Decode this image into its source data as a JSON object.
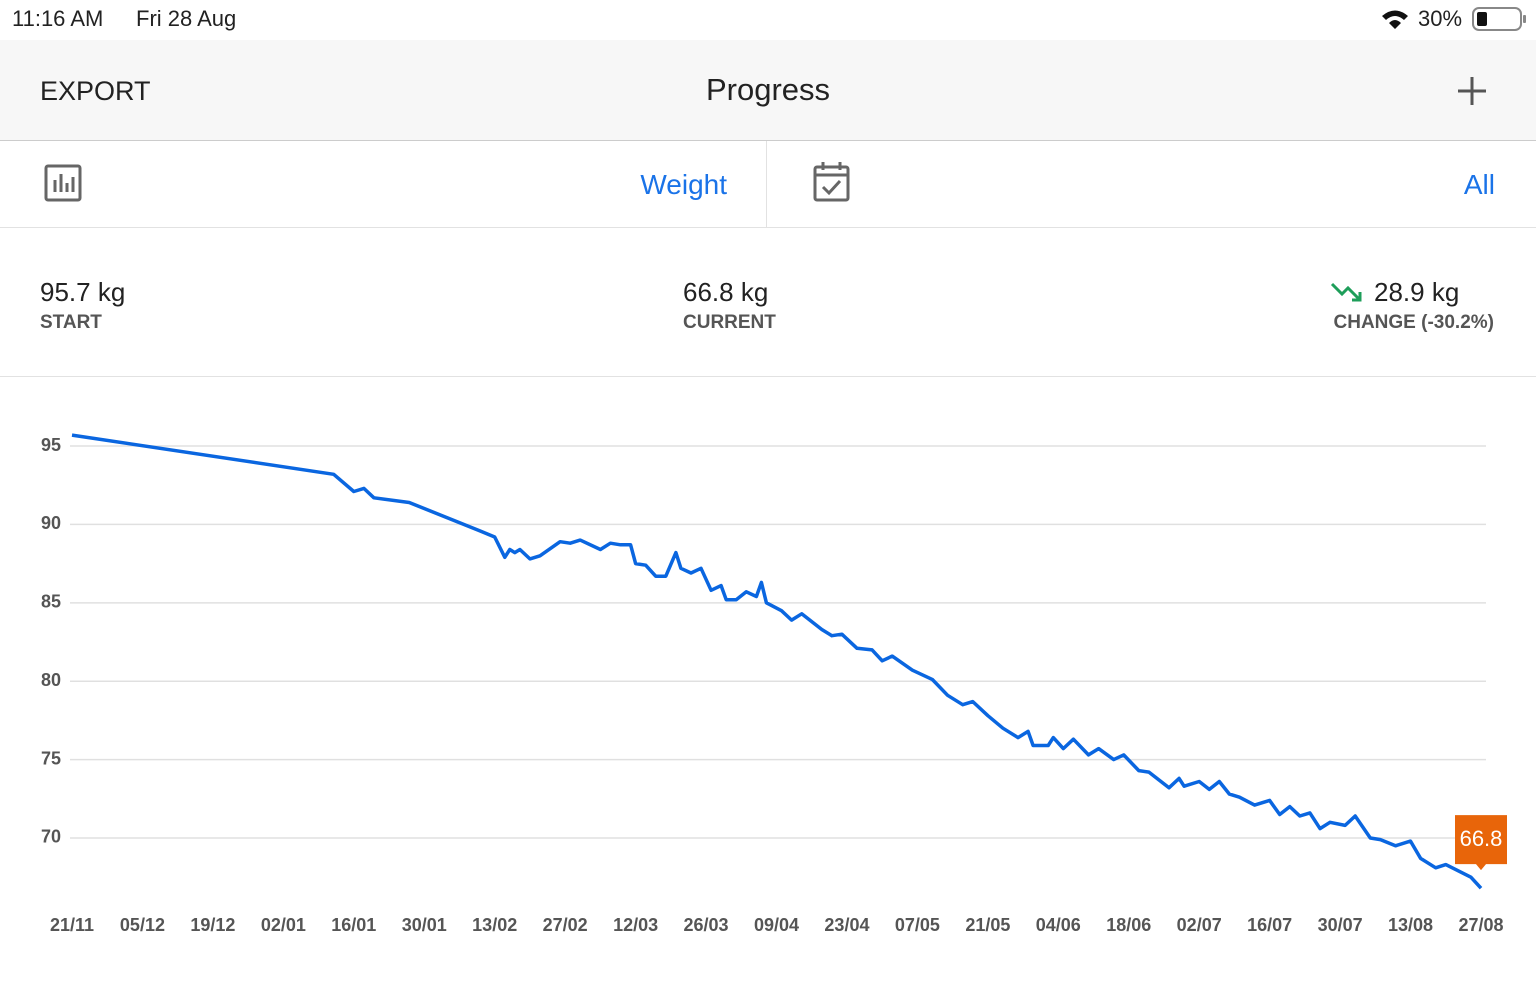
{
  "status_bar": {
    "time": "11:16 AM",
    "date": "Fri 28 Aug",
    "battery": "30%"
  },
  "nav": {
    "left": "EXPORT",
    "title": "Progress"
  },
  "selector": {
    "metric": "Weight",
    "range": "All"
  },
  "stats": {
    "start": {
      "value": "95.7 kg",
      "label": "START"
    },
    "current": {
      "value": "66.8 kg",
      "label": "CURRENT"
    },
    "change": {
      "value": "28.9 kg",
      "label": "CHANGE (-30.2%)"
    }
  },
  "chart_data": {
    "type": "line",
    "color": "#0a66e0",
    "grid": true,
    "x": [
      "21/11",
      "12/01",
      "16/01",
      "18/01",
      "20/01",
      "27/01",
      "10/02",
      "13/02",
      "15/02",
      "16/02",
      "17/02",
      "18/02",
      "20/02",
      "22/02",
      "26/02",
      "28/02",
      "01/03",
      "05/03",
      "07/03",
      "09/03",
      "11/03",
      "12/03",
      "14/03",
      "16/03",
      "18/03",
      "20/03",
      "21/03",
      "23/03",
      "25/03",
      "27/03",
      "29/03",
      "30/03",
      "01/04",
      "03/04",
      "05/04",
      "06/04",
      "07/04",
      "10/04",
      "12/04",
      "14/04",
      "18/04",
      "20/04",
      "22/04",
      "25/04",
      "28/04",
      "30/04",
      "02/05",
      "06/05",
      "10/05",
      "13/05",
      "16/05",
      "18/05",
      "21/05",
      "24/05",
      "27/05",
      "29/05",
      "30/05",
      "02/06",
      "03/06",
      "05/06",
      "07/06",
      "10/06",
      "12/06",
      "15/06",
      "17/06",
      "20/06",
      "22/06",
      "26/06",
      "28/06",
      "29/06",
      "02/07",
      "04/07",
      "06/07",
      "08/07",
      "10/07",
      "13/07",
      "16/07",
      "18/07",
      "20/07",
      "22/07",
      "24/07",
      "26/07",
      "28/07",
      "31/07",
      "02/08",
      "05/08",
      "07/08",
      "10/08",
      "13/08",
      "15/08",
      "18/08",
      "20/08",
      "25/08",
      "27/08"
    ],
    "values": [
      95.7,
      93.2,
      92.1,
      92.3,
      91.7,
      91.4,
      89.6,
      89.2,
      87.9,
      88.4,
      88.2,
      88.4,
      87.8,
      88.0,
      88.9,
      88.8,
      89.0,
      88.4,
      88.8,
      88.7,
      88.7,
      87.5,
      87.4,
      86.7,
      86.7,
      88.2,
      87.2,
      86.9,
      87.2,
      85.8,
      86.1,
      85.2,
      85.2,
      85.7,
      85.4,
      86.3,
      85.0,
      84.5,
      83.9,
      84.3,
      83.3,
      82.9,
      83.0,
      82.1,
      82.0,
      81.3,
      81.6,
      80.7,
      80.1,
      79.1,
      78.5,
      78.7,
      77.8,
      77.0,
      76.4,
      76.8,
      75.9,
      75.9,
      76.4,
      75.7,
      76.3,
      75.3,
      75.7,
      75.0,
      75.3,
      74.3,
      74.2,
      73.2,
      73.8,
      73.3,
      73.6,
      73.1,
      73.6,
      72.8,
      72.6,
      72.1,
      72.4,
      71.5,
      72.0,
      71.4,
      71.6,
      70.6,
      71.0,
      70.8,
      71.4,
      70.0,
      69.9,
      69.5,
      69.8,
      68.7,
      68.1,
      68.3,
      67.5,
      66.8
    ],
    "xticks": [
      "21/11",
      "05/12",
      "19/12",
      "02/01",
      "16/01",
      "30/01",
      "13/02",
      "27/02",
      "12/03",
      "26/03",
      "09/04",
      "23/04",
      "07/05",
      "21/05",
      "04/06",
      "18/06",
      "02/07",
      "16/07",
      "30/07",
      "13/08",
      "27/08"
    ],
    "ylim": [
      66,
      98
    ],
    "yticks": [
      70,
      75,
      80,
      85,
      90,
      95
    ],
    "marker_color": "#e8650a"
  }
}
